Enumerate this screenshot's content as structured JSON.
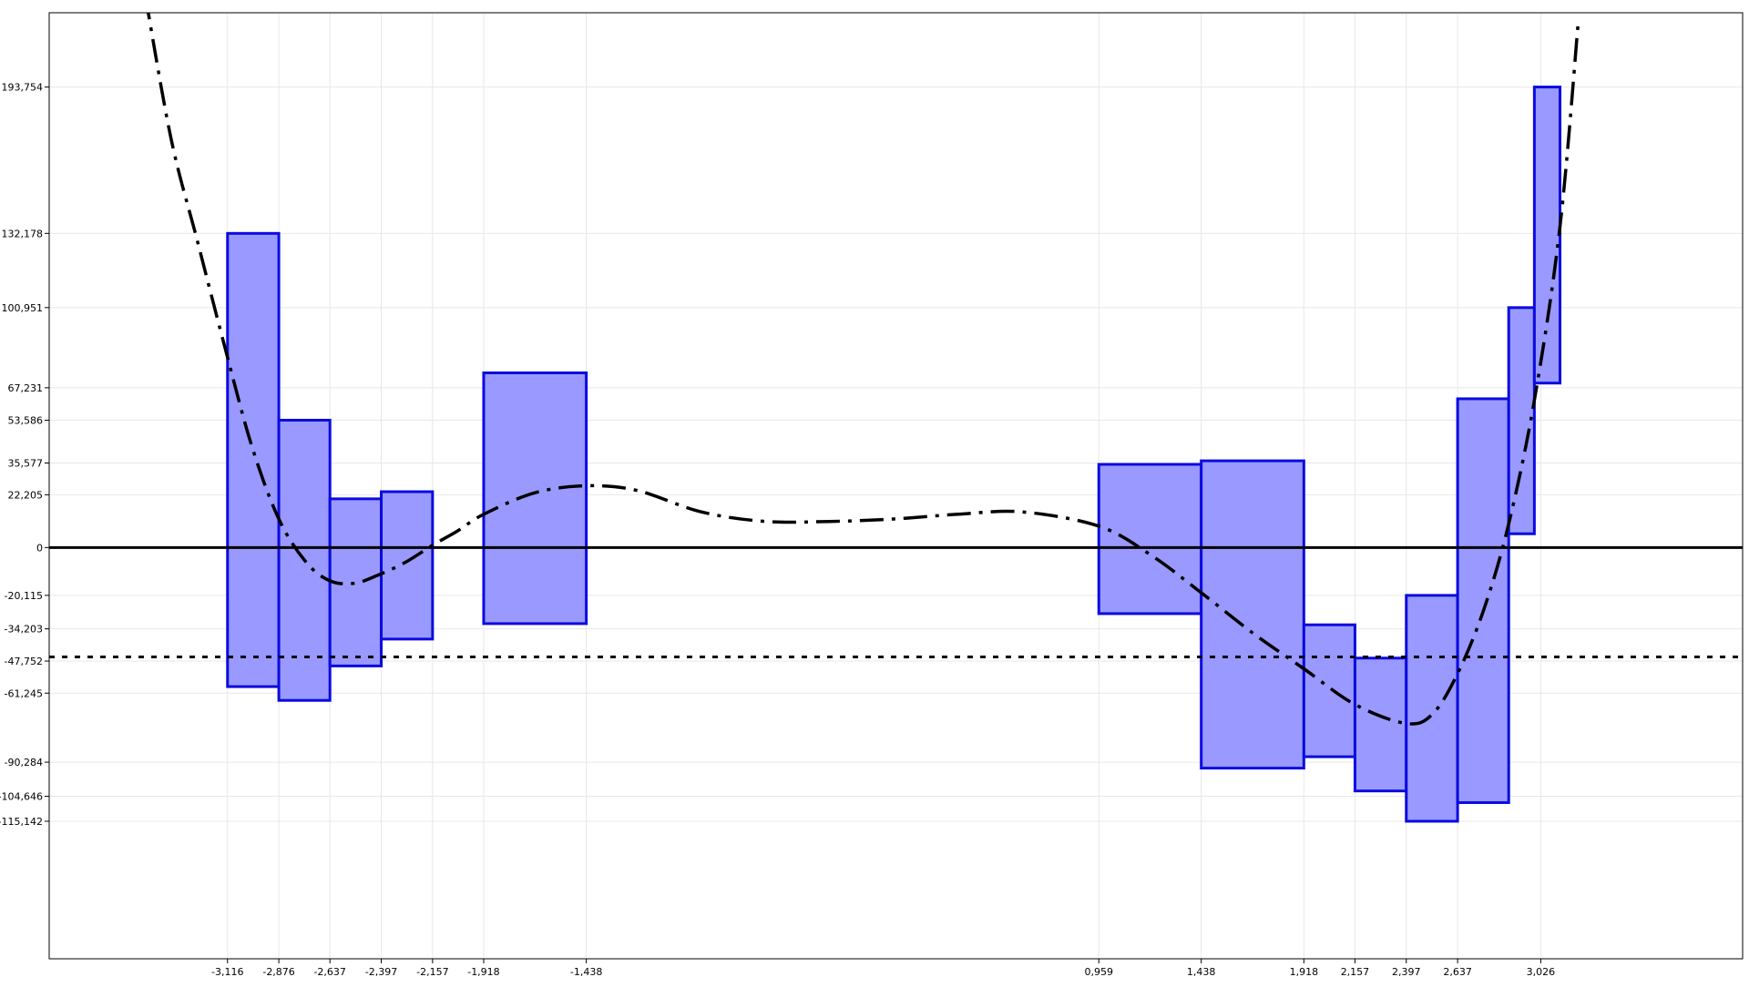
{
  "chart_data": {
    "type": "bar",
    "title": "",
    "xlabel": "",
    "ylabel": "",
    "colors": {
      "box_fill": "#9999ff",
      "box_stroke": "#0b0be0",
      "curve": "#000000",
      "zero_line": "#000000",
      "ref_line": "#000000",
      "grid": "#e8e8e8"
    },
    "xlim": [
      -3.95,
      3.97
    ],
    "ylim": [
      -173,
      225
    ],
    "x_ticks": [
      "-3,116",
      "-2,876",
      "-2,637",
      "-2,397",
      "-2,157",
      "-1,918",
      "-1,438",
      "0,959",
      "1,438",
      "1,918",
      "2,157",
      "2,397",
      "2,637",
      "3,026"
    ],
    "x_tick_values": [
      -3.116,
      -2.876,
      -2.637,
      -2.397,
      -2.157,
      -1.918,
      -1.438,
      0.959,
      1.438,
      1.918,
      2.157,
      2.397,
      2.637,
      3.026
    ],
    "y_ticks": [
      "193,754",
      "132,178",
      "100,951",
      "67,231",
      "53,586",
      "35,577",
      "22,205",
      "0",
      "-20,115",
      "-34,203",
      "-47,752",
      "-61,245",
      "-90,284",
      "-104,646",
      "-115,142"
    ],
    "y_tick_values": [
      193.754,
      132.178,
      100.951,
      67.231,
      53.586,
      35.577,
      22.205,
      0,
      -20.115,
      -34.203,
      -47.752,
      -61.245,
      -90.284,
      -104.646,
      -115.142
    ],
    "boxes": [
      {
        "x0": -3.116,
        "x1": -2.876,
        "top": 132.178,
        "bottom": -58.5
      },
      {
        "x0": -2.876,
        "x1": -2.637,
        "top": 53.586,
        "bottom": -64.3
      },
      {
        "x0": -2.637,
        "x1": -2.397,
        "top": 20.5,
        "bottom": -49.8
      },
      {
        "x0": -2.397,
        "x1": -2.157,
        "top": 23.5,
        "bottom": -38.5
      },
      {
        "x0": -1.918,
        "x1": -1.438,
        "top": 73.5,
        "bottom": -32.0
      },
      {
        "x0": 0.959,
        "x1": 1.438,
        "top": 35.0,
        "bottom": -27.8
      },
      {
        "x0": 1.438,
        "x1": 1.918,
        "top": 36.5,
        "bottom": -92.8
      },
      {
        "x0": 1.918,
        "x1": 2.157,
        "top": -32.5,
        "bottom": -88.0
      },
      {
        "x0": 2.157,
        "x1": 2.397,
        "top": -46.5,
        "bottom": -102.4
      },
      {
        "x0": 2.397,
        "x1": 2.637,
        "top": -20.115,
        "bottom": -115.142
      },
      {
        "x0": 2.637,
        "x1": 2.876,
        "top": 62.6,
        "bottom": -107.3
      },
      {
        "x0": 2.876,
        "x1": 2.996,
        "top": 100.951,
        "bottom": 5.8
      },
      {
        "x0": 2.996,
        "x1": 3.116,
        "top": 193.754,
        "bottom": 69.2
      }
    ],
    "curve": {
      "x": [
        -3.5,
        -3.38,
        -3.26,
        -3.116,
        -3.0,
        -2.876,
        -2.75,
        -2.637,
        -2.52,
        -2.397,
        -2.28,
        -2.157,
        -2.04,
        -1.918,
        -1.68,
        -1.438,
        -1.2,
        -0.9,
        -0.6,
        -0.3,
        0.0,
        0.3,
        0.6,
        0.959,
        1.2,
        1.438,
        1.68,
        1.918,
        2.157,
        2.397,
        2.52,
        2.637,
        2.76,
        2.876,
        2.996,
        3.116,
        3.2
      ],
      "y": [
        232,
        172,
        130,
        80,
        42,
        12,
        -6,
        -14,
        -15,
        -11,
        -6,
        1,
        7,
        14,
        23,
        26,
        24,
        15,
        11,
        11,
        12,
        14,
        15,
        9,
        -3,
        -19,
        -36,
        -51,
        -66,
        -74,
        -70,
        -53,
        -26,
        10,
        62,
        135,
        220
      ]
    },
    "reference_line_y": -46.0,
    "zero_line_y": 0,
    "grid": true,
    "legend": "none"
  }
}
